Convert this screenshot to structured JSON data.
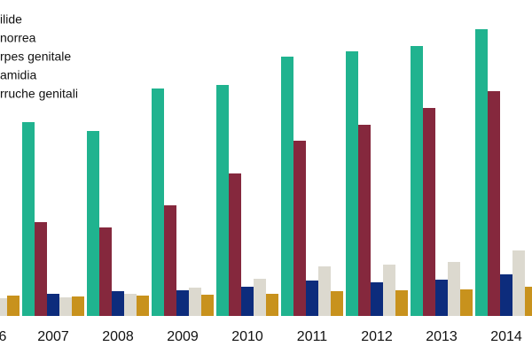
{
  "chart_data": {
    "type": "bar",
    "categories": [
      "6",
      "2007",
      "2008",
      "2009",
      "2010",
      "2011",
      "2012",
      "2013",
      "2014"
    ],
    "series": [
      {
        "name": "ilide",
        "color": "#20b38f",
        "values": [
          null,
          219,
          209,
          257,
          261,
          293,
          299,
          305,
          324
        ]
      },
      {
        "name": "norrea",
        "color": "#85283d",
        "values": [
          null,
          106,
          100,
          125,
          161,
          198,
          216,
          235,
          254
        ]
      },
      {
        "name": "rpes genitale",
        "color": "#0d2c7c",
        "values": [
          null,
          25,
          28,
          29,
          33,
          40,
          38,
          41,
          47
        ]
      },
      {
        "name": "amidia",
        "color": "#dcd9cf",
        "values": [
          20,
          21,
          25,
          32,
          42,
          56,
          58,
          61,
          74
        ]
      },
      {
        "name": "rruche genitali",
        "color": "#c8921d",
        "values": [
          23,
          22,
          23,
          24,
          25,
          28,
          29,
          30,
          33
        ]
      }
    ],
    "ylim": [
      0,
      357
    ]
  }
}
